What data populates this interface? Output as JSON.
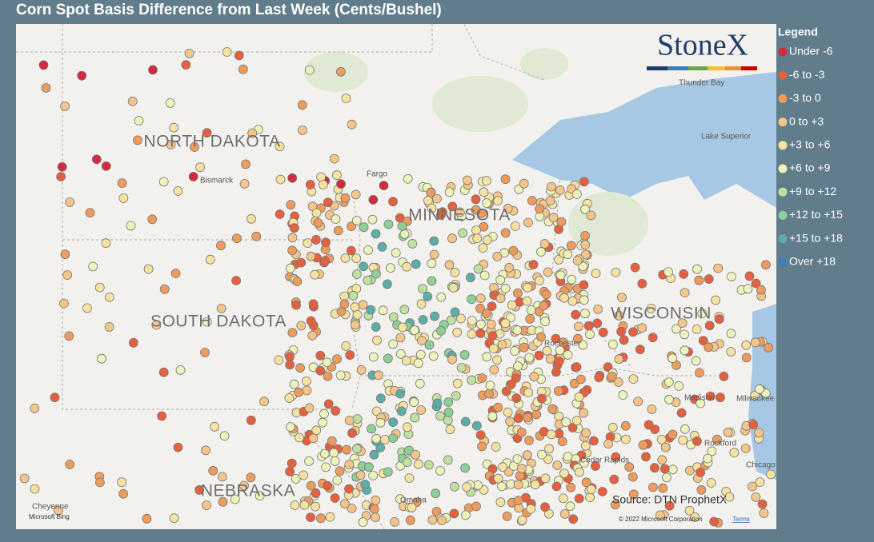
{
  "header": {
    "title": "Corn Spot Basis Difference from Last Week (Cents/Bushel)"
  },
  "logo": {
    "text": "StoneX"
  },
  "legend": {
    "title": "Legend",
    "items": [
      {
        "label": "Under -6",
        "color": "#d42a3c"
      },
      {
        "label": "-6 to -3",
        "color": "#e5603f"
      },
      {
        "label": "-3 to 0",
        "color": "#ee9c5e"
      },
      {
        "label": "0 to +3",
        "color": "#f4c68a"
      },
      {
        "label": "+3 to +6",
        "color": "#f6e3a2"
      },
      {
        "label": "+6 to +9",
        "color": "#eef2bb"
      },
      {
        "label": "+9 to +12",
        "color": "#bfe0a0"
      },
      {
        "label": "+12 to +15",
        "color": "#8ecf98"
      },
      {
        "label": "+15 to +18",
        "color": "#5eaea8"
      },
      {
        "label": "Over +18",
        "color": "#3b7fbf"
      }
    ]
  },
  "map": {
    "states": [
      "NORTH DAKOTA",
      "SOUTH DAKOTA",
      "MINNESOTA",
      "WISCONSIN",
      "NEBRASKA"
    ],
    "places": [
      "Bismarck",
      "Fargo",
      "Thunder Bay",
      "Lake Superior",
      "Rochester",
      "Madison",
      "Milwaukee",
      "Rockford",
      "Cedar Rapids",
      "Omaha",
      "Cheyenne",
      "Chicago"
    ]
  },
  "source": "Source: DTN ProphetX",
  "credits": {
    "bing": "Microsoft Bing",
    "copyright": "© 2022 Microsoft Corporation",
    "terms": "Terms"
  }
}
